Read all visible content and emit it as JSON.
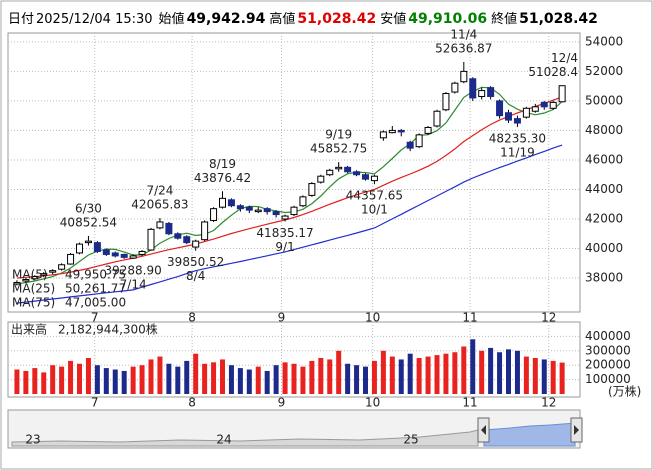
{
  "header": {
    "date_label": "日付",
    "date": "2025/12/04 15:30",
    "items": [
      {
        "label": "始値",
        "value": "49,942.94",
        "color": "#000000"
      },
      {
        "label": "高値",
        "value": "51,028.42",
        "color": "#e00000"
      },
      {
        "label": "安値",
        "value": "49,910.06",
        "color": "#008000"
      },
      {
        "label": "終値",
        "value": "51,028.42",
        "color": "#000000"
      }
    ]
  },
  "chart_data": {
    "type": "candlestick",
    "xlim": [
      -1,
      63
    ],
    "xticks": [
      {
        "value": 8.7,
        "label": "7"
      },
      {
        "value": 19.6,
        "label": "8"
      },
      {
        "value": 29.6,
        "label": "9"
      },
      {
        "value": 39.8,
        "label": "10"
      },
      {
        "value": 50.7,
        "label": "11"
      },
      {
        "value": 59.5,
        "label": "12"
      }
    ],
    "ylim": [
      35700,
      54600
    ],
    "yticks": [
      38000,
      40000,
      42000,
      44000,
      46000,
      48000,
      50000,
      52000,
      54000
    ],
    "grid": true,
    "up_color": "#ffffff",
    "down_color": "#1c2a8c",
    "open": [
      37600,
      37800,
      37950,
      38200,
      38400,
      38600,
      38950,
      39700,
      40400,
      40400,
      39900,
      39700,
      39600,
      39350,
      39600,
      39900,
      41400,
      41700,
      41000,
      40800,
      40100,
      40600,
      41900,
      42800,
      43300,
      42900,
      42800,
      42500,
      42700,
      42500,
      42000,
      42300,
      42900,
      43600,
      44500,
      45000,
      45400,
      45500,
      45200,
      45000,
      44600,
      47500,
      47850,
      48000,
      47200,
      46900,
      47800,
      48300,
      49400,
      50600,
      51300,
      51500,
      50300,
      50900,
      50000,
      49200,
      48800,
      48900,
      49300,
      49900,
      49500,
      49942.94
    ],
    "high": [
      37850,
      38000,
      38200,
      38400,
      38600,
      39000,
      39700,
      40400,
      40852.54,
      40500,
      40000,
      39800,
      39650,
      39600,
      39900,
      41400,
      42065.83,
      41800,
      41100,
      40900,
      40600,
      41900,
      42800,
      43876.42,
      43400,
      43000,
      42900,
      42800,
      42800,
      42600,
      42300,
      42900,
      43600,
      44500,
      45000,
      45400,
      45852.75,
      45600,
      45300,
      45100,
      45000,
      48000,
      48300,
      48100,
      47300,
      47800,
      48300,
      49400,
      50600,
      51300,
      52636.87,
      51600,
      50900,
      51000,
      50100,
      49400,
      49000,
      49600,
      49800,
      50000,
      50000,
      51028.42
    ],
    "low": [
      37500,
      37650,
      37850,
      38050,
      38250,
      38500,
      38900,
      39600,
      40200,
      39700,
      39500,
      39400,
      39300,
      39288.9,
      39500,
      39850,
      41300,
      40900,
      40600,
      40300,
      39850.52,
      40500,
      41800,
      42700,
      42800,
      42500,
      42400,
      42400,
      42300,
      42100,
      41835.17,
      42200,
      42800,
      43500,
      44400,
      44900,
      45200,
      45100,
      44900,
      44600,
      44357.65,
      47300,
      47800,
      47600,
      46600,
      46800,
      47700,
      48200,
      49300,
      50500,
      51200,
      50000,
      50100,
      50100,
      48800,
      48500,
      48235.3,
      48800,
      49200,
      49400,
      49400,
      49910.06
    ],
    "close": [
      37700,
      37900,
      38100,
      38300,
      38500,
      38900,
      39600,
      40300,
      40500,
      39800,
      39600,
      39500,
      39400,
      39500,
      39800,
      41300,
      41800,
      41000,
      40700,
      40400,
      40500,
      41800,
      42700,
      43400,
      42900,
      42700,
      42600,
      42600,
      42500,
      42300,
      42200,
      42800,
      43500,
      44400,
      44900,
      45300,
      45500,
      45200,
      45000,
      44700,
      44900,
      47900,
      48000,
      47900,
      46800,
      47700,
      48200,
      49300,
      50500,
      51200,
      52000,
      50200,
      50700,
      50300,
      49000,
      48700,
      48500,
      49500,
      49600,
      49600,
      49900,
      51028.42
    ],
    "series": [
      {
        "name": "MA(5)",
        "color": "#2e8b2e",
        "values": [
          37600,
          37700,
          37800,
          37950,
          38100,
          38340,
          38680,
          39120,
          39560,
          39820,
          39960,
          39940,
          39760,
          39560,
          39560,
          39900,
          40360,
          40680,
          40920,
          41040,
          40880,
          40960,
          41220,
          41760,
          42260,
          42700,
          42860,
          42840,
          42660,
          42540,
          42440,
          42480,
          42660,
          43040,
          43560,
          44180,
          44720,
          45060,
          45180,
          45140,
          45060,
          45540,
          46100,
          46680,
          47100,
          47660,
          47720,
          47980,
          48500,
          49380,
          50240,
          50640,
          50920,
          50880,
          50440,
          49780,
          49440,
          49200,
          49060,
          49180,
          49420,
          49950.75
        ],
        "value_labels": [
          null,
          null,
          null,
          null,
          null,
          null,
          null,
          null,
          null,
          null,
          null,
          null,
          null,
          null,
          null,
          null,
          null,
          null,
          null,
          null,
          null,
          null,
          null,
          null,
          null,
          null,
          null,
          null,
          null,
          null,
          null,
          null,
          null,
          null,
          null,
          null,
          null,
          null,
          null,
          null,
          null,
          null,
          null,
          null,
          null,
          null,
          null,
          null,
          null,
          null,
          null,
          null,
          null,
          null,
          null,
          null,
          null,
          null,
          null,
          null,
          null,
          "49,950.75"
        ]
      },
      {
        "name": "MA(25)",
        "color": "#e02020",
        "values": [
          38000,
          38050,
          38100,
          38150,
          38220,
          38300,
          38400,
          38520,
          38650,
          38800,
          38950,
          39100,
          39230,
          39350,
          39470,
          39620,
          39780,
          39920,
          40050,
          40170,
          40300,
          40470,
          40640,
          40830,
          41020,
          41180,
          41340,
          41500,
          41650,
          41800,
          41940,
          42100,
          42300,
          42520,
          42760,
          43000,
          43220,
          43440,
          43640,
          43820,
          44000,
          44280,
          44560,
          44820,
          45050,
          45300,
          45580,
          45900,
          46300,
          46750,
          47250,
          47650,
          48050,
          48400,
          48700,
          48950,
          49180,
          49400,
          49620,
          49840,
          50050,
          50261.77
        ],
        "value_labels": [
          null,
          null,
          null,
          null,
          null,
          null,
          null,
          null,
          null,
          null,
          null,
          null,
          null,
          null,
          null,
          null,
          null,
          null,
          null,
          null,
          null,
          null,
          null,
          null,
          null,
          null,
          null,
          null,
          null,
          null,
          null,
          null,
          null,
          null,
          null,
          null,
          null,
          null,
          null,
          null,
          null,
          null,
          null,
          null,
          null,
          null,
          null,
          null,
          null,
          null,
          null,
          null,
          null,
          null,
          null,
          null,
          null,
          null,
          null,
          null,
          null,
          "50,261.77"
        ]
      },
      {
        "name": "MA(75)",
        "color": "#1f2fd0",
        "values": [
          36300,
          36370,
          36440,
          36510,
          36580,
          36650,
          36720,
          36790,
          36860,
          36930,
          37000,
          37070,
          37130,
          37200,
          37380,
          37560,
          37740,
          37920,
          38100,
          38300,
          38500,
          38630,
          38760,
          38880,
          39000,
          39120,
          39250,
          39380,
          39510,
          39640,
          39770,
          39930,
          40090,
          40250,
          40410,
          40570,
          40730,
          40890,
          41050,
          41220,
          41390,
          41700,
          42010,
          42320,
          42630,
          42940,
          43250,
          43560,
          43870,
          44180,
          44500,
          44780,
          45020,
          45250,
          45480,
          45700,
          45920,
          46140,
          46360,
          46580,
          46800,
          47005
        ],
        "value_labels": [
          null,
          null,
          null,
          null,
          null,
          null,
          null,
          null,
          null,
          null,
          null,
          null,
          null,
          null,
          null,
          null,
          null,
          null,
          null,
          null,
          null,
          null,
          null,
          null,
          null,
          null,
          null,
          null,
          null,
          null,
          null,
          null,
          null,
          null,
          null,
          null,
          null,
          null,
          null,
          null,
          null,
          null,
          null,
          null,
          null,
          null,
          null,
          null,
          null,
          null,
          null,
          null,
          null,
          null,
          null,
          null,
          null,
          null,
          null,
          null,
          null,
          "47,005.00"
        ]
      }
    ],
    "annotations": [
      {
        "date": "6/30",
        "value": 40852.54
      },
      {
        "date": "7/14",
        "value": 39288.9,
        "value_label": "39288.90"
      },
      {
        "date": "7/24",
        "value": 42065.83
      },
      {
        "date": "8/4",
        "value": 39850.52
      },
      {
        "date": "8/19",
        "value": 43876.42
      },
      {
        "date": "9/1",
        "value": 41835.17
      },
      {
        "date": "9/19",
        "value": 45852.75
      },
      {
        "date": "10/1",
        "value": 44357.65
      },
      {
        "date": "11/4",
        "value": 52636.87
      },
      {
        "date": "11/19",
        "value": 48235.3,
        "value_label": "48235.30"
      },
      {
        "date": "12/4",
        "value": 51028.42,
        "value_label": "51028.4"
      }
    ],
    "volume": {
      "name": "出来高",
      "up_color": "#e8231f",
      "down_color": "#1c2a8c",
      "unit": "(万株)",
      "ylim": [
        0,
        500000
      ],
      "yticks": [
        100000,
        200000,
        300000,
        400000
      ],
      "values": [
        170000,
        160000,
        180000,
        150000,
        200000,
        190000,
        230000,
        210000,
        250000,
        200000,
        180000,
        170000,
        160000,
        190000,
        200000,
        240000,
        260000,
        210000,
        190000,
        230000,
        280000,
        210000,
        220000,
        240000,
        200000,
        180000,
        170000,
        190000,
        160000,
        200000,
        220000,
        210000,
        190000,
        230000,
        250000,
        240000,
        300000,
        210000,
        200000,
        190000,
        230000,
        300000,
        260000,
        240000,
        280000,
        250000,
        260000,
        270000,
        280000,
        290000,
        330000,
        380000,
        300000,
        320000,
        290000,
        310000,
        300000,
        260000,
        250000,
        240000,
        230000,
        218294.43
      ],
      "value_labels": [
        null,
        null,
        null,
        null,
        null,
        null,
        null,
        null,
        null,
        null,
        null,
        null,
        null,
        null,
        null,
        null,
        null,
        null,
        null,
        null,
        null,
        null,
        null,
        null,
        null,
        null,
        null,
        null,
        null,
        null,
        null,
        null,
        null,
        null,
        null,
        null,
        null,
        null,
        null,
        null,
        null,
        null,
        null,
        null,
        null,
        null,
        null,
        null,
        null,
        null,
        null,
        null,
        null,
        null,
        null,
        null,
        null,
        null,
        null,
        null,
        null,
        "2,182,944,300株"
      ]
    },
    "navigator": {
      "labels": [
        "23",
        "24",
        "25"
      ]
    }
  }
}
